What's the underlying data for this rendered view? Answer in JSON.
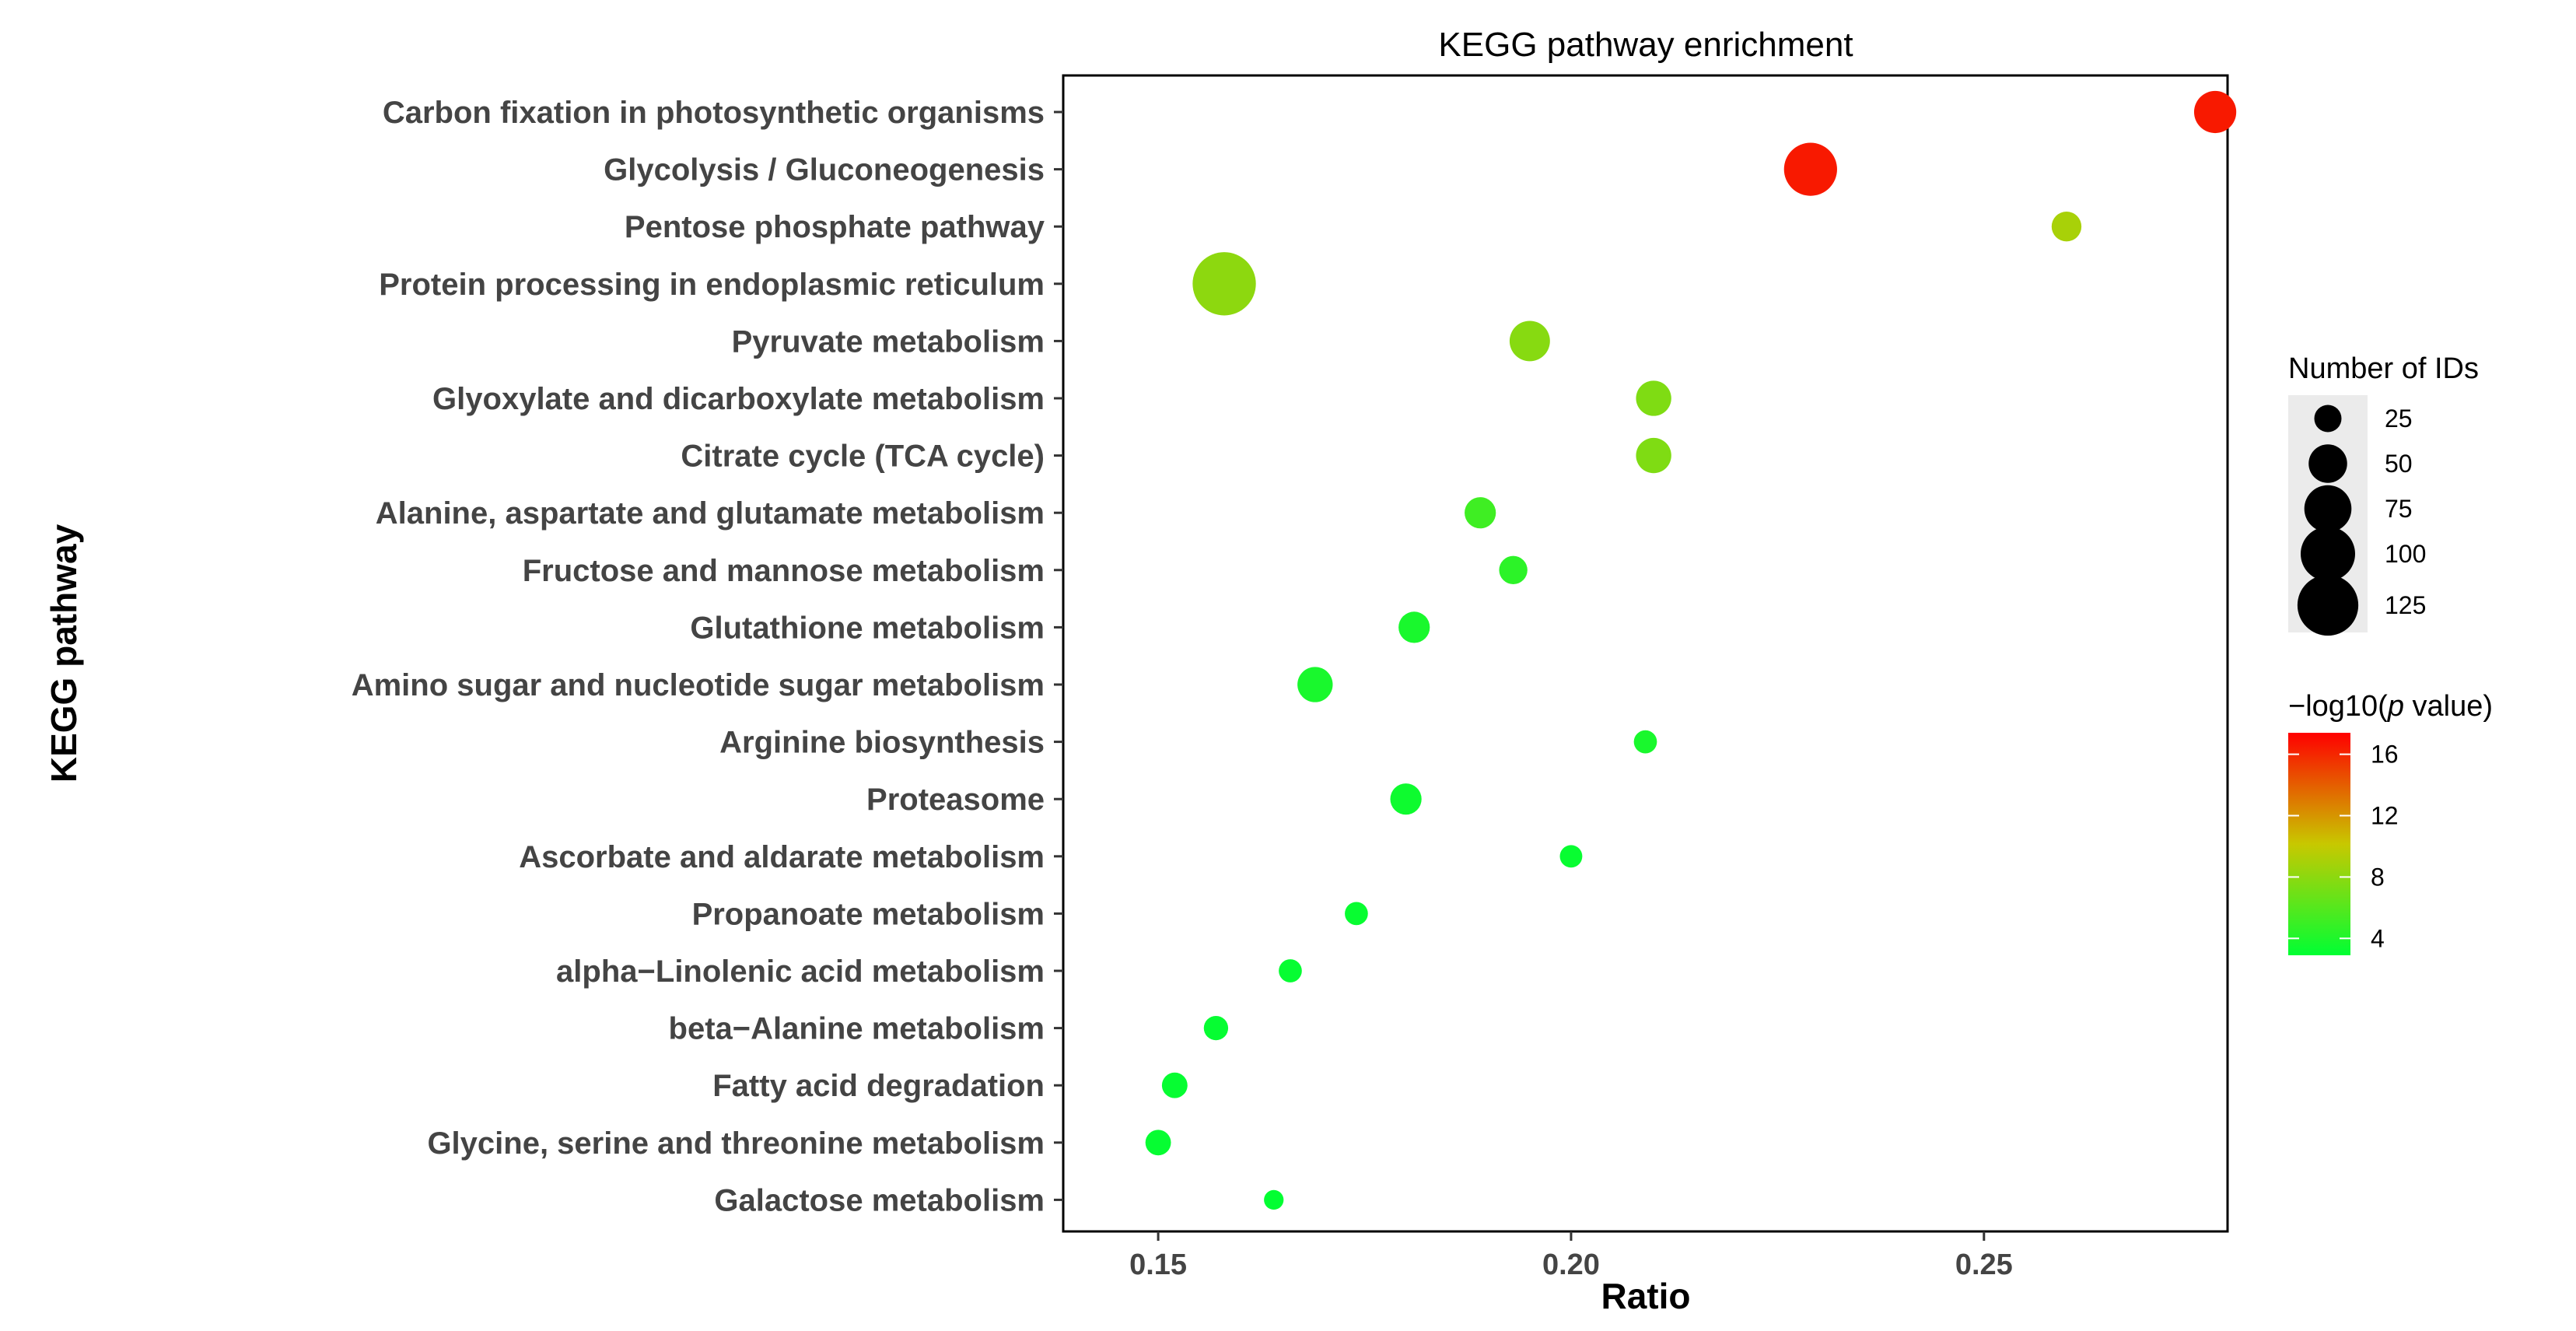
{
  "chart_data": {
    "type": "scatter",
    "title": "KEGG pathway enrichment",
    "xlabel": "Ratio",
    "ylabel": "KEGG pathway",
    "xlim": [
      0.1385,
      0.2795
    ],
    "x_ticks": [
      {
        "value": 0.15,
        "label": "0.15"
      },
      {
        "value": 0.2,
        "label": "0.20"
      },
      {
        "value": 0.25,
        "label": "0.25"
      }
    ],
    "grid": false,
    "points": [
      {
        "pathway": "Carbon fixation in photosynthetic organisms",
        "ratio": 0.278,
        "count": 60,
        "neglog10p": 16.5
      },
      {
        "pathway": "Glycolysis / Gluconeogenesis",
        "ratio": 0.229,
        "count": 95,
        "neglog10p": 16.5
      },
      {
        "pathway": "Pentose phosphate pathway",
        "ratio": 0.26,
        "count": 30,
        "neglog10p": 9.0
      },
      {
        "pathway": "Protein processing in endoplasmic reticulum",
        "ratio": 0.158,
        "count": 135,
        "neglog10p": 8.0
      },
      {
        "pathway": "Pyruvate metabolism",
        "ratio": 0.195,
        "count": 55,
        "neglog10p": 7.8
      },
      {
        "pathway": "Glyoxylate and dicarboxylate metabolism",
        "ratio": 0.21,
        "count": 42,
        "neglog10p": 7.5
      },
      {
        "pathway": "Citrate cycle (TCA cycle)",
        "ratio": 0.21,
        "count": 42,
        "neglog10p": 7.5
      },
      {
        "pathway": "Alanine, aspartate and glutamate metabolism",
        "ratio": 0.189,
        "count": 33,
        "neglog10p": 5.2
      },
      {
        "pathway": "Fructose and mannose metabolism",
        "ratio": 0.193,
        "count": 27,
        "neglog10p": 4.5
      },
      {
        "pathway": "Glutathione metabolism",
        "ratio": 0.181,
        "count": 33,
        "neglog10p": 3.8
      },
      {
        "pathway": "Amino sugar and nucleotide sugar metabolism",
        "ratio": 0.169,
        "count": 42,
        "neglog10p": 3.8
      },
      {
        "pathway": "Arginine biosynthesis",
        "ratio": 0.209,
        "count": 18,
        "neglog10p": 3.8
      },
      {
        "pathway": "Proteasome",
        "ratio": 0.18,
        "count": 33,
        "neglog10p": 3.4
      },
      {
        "pathway": "Ascorbate and aldarate metabolism",
        "ratio": 0.2,
        "count": 17,
        "neglog10p": 3.2
      },
      {
        "pathway": "Propanoate metabolism",
        "ratio": 0.174,
        "count": 18,
        "neglog10p": 3.2
      },
      {
        "pathway": "alpha−Linolenic acid metabolism",
        "ratio": 0.166,
        "count": 18,
        "neglog10p": 3.1
      },
      {
        "pathway": "beta−Alanine metabolism",
        "ratio": 0.157,
        "count": 20,
        "neglog10p": 3.1
      },
      {
        "pathway": "Fatty acid degradation",
        "ratio": 0.152,
        "count": 22,
        "neglog10p": 3.1
      },
      {
        "pathway": "Glycine, serine and threonine metabolism",
        "ratio": 0.15,
        "count": 22,
        "neglog10p": 3.1
      },
      {
        "pathway": "Galactose metabolism",
        "ratio": 0.164,
        "count": 13,
        "neglog10p": 3.0
      }
    ],
    "size_legend": {
      "title": "Number of IDs",
      "breaks": [
        25,
        50,
        75,
        100,
        125
      ],
      "range": [
        13,
        135
      ]
    },
    "color_legend": {
      "title_prefix": "−log10(",
      "title_italic": "p",
      "title_suffix": " value)",
      "breaks": [
        4,
        8,
        12,
        16
      ],
      "range": [
        2.9,
        17.4
      ],
      "colors": {
        "low": "#00ff33",
        "mid": "#c8c800",
        "high": "#ff0000"
      }
    }
  }
}
